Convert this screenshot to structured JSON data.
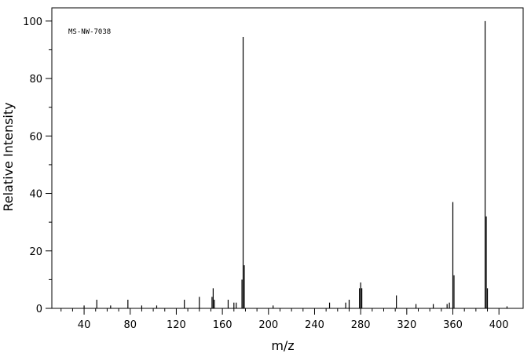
{
  "chart_data": {
    "type": "bar",
    "annotation": "MS-NW-7038",
    "x_label": "m/z",
    "y_label": "Relative Intensity",
    "series": [
      {
        "color": "#000000",
        "x": [
          40,
          51,
          63,
          78,
          90,
          103,
          127,
          140,
          151,
          152,
          153,
          165,
          170,
          172,
          177,
          178,
          179,
          204,
          253,
          267,
          270,
          279,
          280,
          281,
          311,
          328,
          343,
          355,
          357,
          360,
          361,
          388,
          389,
          390,
          407
        ],
        "values": [
          1,
          3,
          1,
          3,
          1,
          1,
          3,
          4,
          4,
          7,
          3,
          3,
          2,
          2,
          10,
          94.5,
          15,
          1,
          2,
          2,
          3,
          7,
          9,
          7,
          4.5,
          1.5,
          1.5,
          1.5,
          2,
          37,
          11.5,
          100,
          32,
          7,
          0.7
        ]
      }
    ],
    "xlim": [
      12,
      421
    ],
    "ylim": [
      0,
      104.6
    ],
    "xticks": [
      40,
      80,
      120,
      160,
      200,
      240,
      280,
      320,
      360,
      400
    ],
    "yticks": [
      0,
      20,
      40,
      60,
      80,
      100
    ]
  }
}
